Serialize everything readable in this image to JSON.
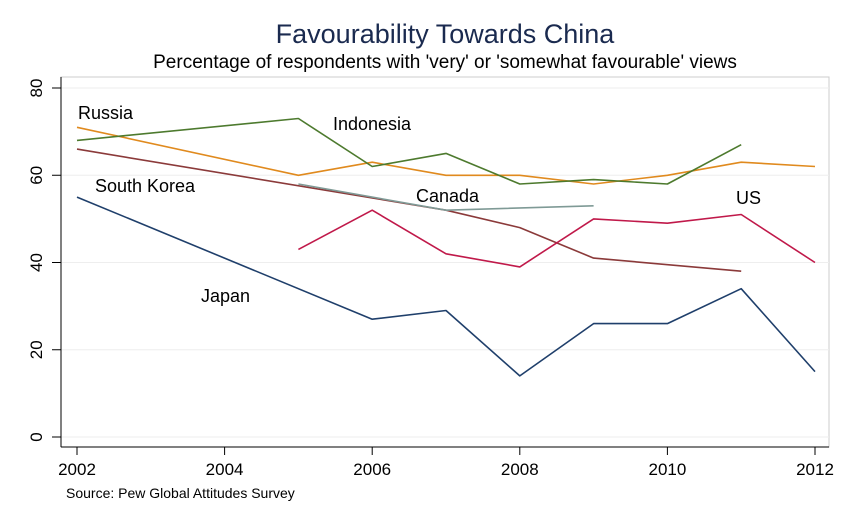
{
  "chart_data": {
    "type": "line",
    "title": "Favourability Towards China",
    "subtitle": "Percentage of respondents with 'very' or 'somewhat favourable' views",
    "source": "Source: Pew Global Attitudes Survey",
    "xlabel": "",
    "ylabel": "",
    "xlim": [
      2002,
      2012
    ],
    "ylim": [
      0,
      80
    ],
    "xticks": [
      2002,
      2004,
      2006,
      2008,
      2010,
      2012
    ],
    "yticks": [
      0,
      20,
      40,
      60,
      80
    ],
    "grid": true,
    "legend": "inline labels",
    "series": [
      {
        "name": "Russia",
        "color": "#e08a1e",
        "points": [
          [
            2002,
            71
          ],
          [
            2005,
            60
          ],
          [
            2006,
            63
          ],
          [
            2007,
            60
          ],
          [
            2008,
            60
          ],
          [
            2009,
            58
          ],
          [
            2010,
            60
          ],
          [
            2011,
            63
          ],
          [
            2012,
            62
          ]
        ]
      },
      {
        "name": "Indonesia",
        "color": "#4d7a2e",
        "points": [
          [
            2002,
            68
          ],
          [
            2005,
            73
          ],
          [
            2006,
            62
          ],
          [
            2007,
            65
          ],
          [
            2008,
            58
          ],
          [
            2009,
            59
          ],
          [
            2010,
            58
          ],
          [
            2011,
            67
          ]
        ]
      },
      {
        "name": "South Korea",
        "color": "#8b3a3a",
        "points": [
          [
            2002,
            66
          ],
          [
            2007,
            52
          ],
          [
            2008,
            48
          ],
          [
            2009,
            41
          ],
          [
            2011,
            38
          ]
        ]
      },
      {
        "name": "Canada",
        "color": "#7f9a96",
        "points": [
          [
            2005,
            58
          ],
          [
            2007,
            52
          ],
          [
            2009,
            53
          ]
        ]
      },
      {
        "name": "US",
        "color": "#c0194a",
        "points": [
          [
            2005,
            43
          ],
          [
            2006,
            52
          ],
          [
            2007,
            42
          ],
          [
            2008,
            39
          ],
          [
            2009,
            50
          ],
          [
            2010,
            49
          ],
          [
            2011,
            51
          ],
          [
            2012,
            40
          ]
        ]
      },
      {
        "name": "Japan",
        "color": "#1f3f6b",
        "points": [
          [
            2002,
            55
          ],
          [
            2006,
            27
          ],
          [
            2007,
            29
          ],
          [
            2008,
            14
          ],
          [
            2009,
            26
          ],
          [
            2010,
            26
          ],
          [
            2011,
            34
          ],
          [
            2012,
            15
          ]
        ]
      }
    ]
  }
}
